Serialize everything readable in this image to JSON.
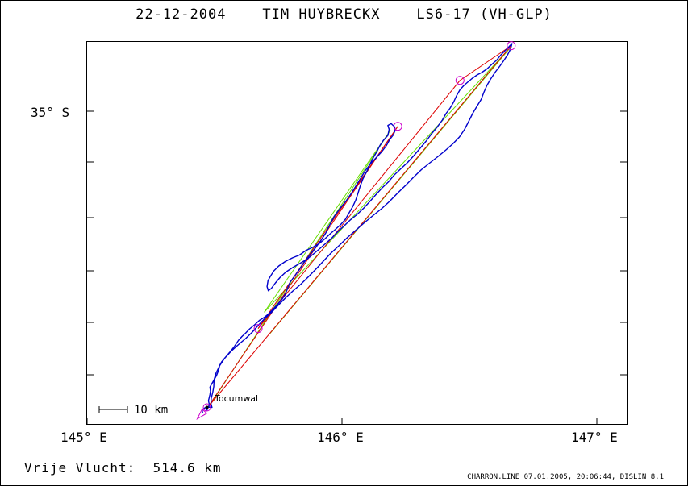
{
  "title": "22-12-2004    TIM HUYBRECKX    LS6-17 (VH-GLP)",
  "axes": {
    "lat_label": "35° S",
    "lon_labels": [
      "145° E",
      "146° E",
      "147° E"
    ]
  },
  "scale_bar_label": "10 km",
  "town": "Tocumwal",
  "distance_text": "Vrije Vlucht:  514.6 km",
  "footer": "CHARRON.LINE 07.01.2005, 20:06:44, DISLIN 8.1",
  "colors": {
    "track": "#0000cc",
    "turnpoint": "#cc00cc",
    "task_line": "#dd0000",
    "alt_line": "#66dd00",
    "frame": "#000000"
  },
  "route": {
    "track": [
      [
        145.454,
        -35.997
      ],
      [
        145.451,
        -35.991
      ],
      [
        145.456,
        -35.985
      ],
      [
        145.463,
        -35.981
      ],
      [
        145.473,
        -35.981
      ],
      [
        145.478,
        -35.976
      ],
      [
        145.479,
        -35.968
      ],
      [
        145.476,
        -35.958
      ],
      [
        145.479,
        -35.948
      ],
      [
        145.482,
        -35.937
      ],
      [
        145.484,
        -35.926
      ],
      [
        145.482,
        -35.913
      ],
      [
        145.489,
        -35.902
      ],
      [
        145.498,
        -35.889
      ],
      [
        145.508,
        -35.874
      ],
      [
        145.516,
        -35.857
      ],
      [
        145.52,
        -35.841
      ],
      [
        145.528,
        -35.829
      ],
      [
        145.541,
        -35.816
      ],
      [
        145.559,
        -35.798
      ],
      [
        145.578,
        -35.778
      ],
      [
        145.594,
        -35.758
      ],
      [
        145.608,
        -35.745
      ],
      [
        145.622,
        -35.734
      ],
      [
        145.638,
        -35.72
      ],
      [
        145.658,
        -35.706
      ],
      [
        145.676,
        -35.692
      ],
      [
        145.695,
        -35.682
      ],
      [
        145.714,
        -35.669
      ],
      [
        145.73,
        -35.655
      ],
      [
        145.747,
        -35.639
      ],
      [
        145.765,
        -35.622
      ],
      [
        145.779,
        -35.603
      ],
      [
        145.788,
        -35.582
      ],
      [
        145.797,
        -35.565
      ],
      [
        145.814,
        -35.546
      ],
      [
        145.832,
        -35.525
      ],
      [
        145.851,
        -35.501
      ],
      [
        145.873,
        -35.476
      ],
      [
        145.897,
        -35.451
      ],
      [
        145.918,
        -35.427
      ],
      [
        145.937,
        -35.402
      ],
      [
        145.951,
        -35.377
      ],
      [
        145.969,
        -35.349
      ],
      [
        145.992,
        -35.322
      ],
      [
        146.016,
        -35.297
      ],
      [
        146.038,
        -35.27
      ],
      [
        146.057,
        -35.244
      ],
      [
        146.074,
        -35.221
      ],
      [
        146.09,
        -35.198
      ],
      [
        146.111,
        -35.175
      ],
      [
        146.134,
        -35.154
      ],
      [
        146.156,
        -35.134
      ],
      [
        146.174,
        -35.114
      ],
      [
        146.187,
        -35.094
      ],
      [
        146.201,
        -35.079
      ],
      [
        146.208,
        -35.065
      ],
      [
        146.207,
        -35.052
      ],
      [
        146.193,
        -35.041
      ],
      [
        146.18,
        -35.047
      ],
      [
        146.185,
        -35.06
      ],
      [
        146.18,
        -35.08
      ],
      [
        146.162,
        -35.097
      ],
      [
        146.149,
        -35.113
      ],
      [
        146.138,
        -35.132
      ],
      [
        146.124,
        -35.152
      ],
      [
        146.11,
        -35.175
      ],
      [
        146.098,
        -35.198
      ],
      [
        146.082,
        -35.224
      ],
      [
        146.071,
        -35.249
      ],
      [
        146.063,
        -35.271
      ],
      [
        146.054,
        -35.294
      ],
      [
        146.042,
        -35.316
      ],
      [
        146.028,
        -35.336
      ],
      [
        146.014,
        -35.357
      ],
      [
        145.995,
        -35.375
      ],
      [
        145.974,
        -35.391
      ],
      [
        145.953,
        -35.406
      ],
      [
        145.932,
        -35.423
      ],
      [
        145.912,
        -35.437
      ],
      [
        145.888,
        -35.449
      ],
      [
        145.858,
        -35.461
      ],
      [
        145.833,
        -35.476
      ],
      [
        145.806,
        -35.485
      ],
      [
        145.778,
        -35.497
      ],
      [
        145.752,
        -35.512
      ],
      [
        145.733,
        -35.528
      ],
      [
        145.72,
        -35.545
      ],
      [
        145.71,
        -35.56
      ],
      [
        145.706,
        -35.58
      ],
      [
        145.711,
        -35.594
      ],
      [
        145.723,
        -35.586
      ],
      [
        145.739,
        -35.568
      ],
      [
        145.757,
        -35.55
      ],
      [
        145.78,
        -35.532
      ],
      [
        145.807,
        -35.517
      ],
      [
        145.836,
        -35.503
      ],
      [
        145.864,
        -35.489
      ],
      [
        145.89,
        -35.471
      ],
      [
        145.915,
        -35.453
      ],
      [
        145.938,
        -35.436
      ],
      [
        145.962,
        -35.418
      ],
      [
        145.983,
        -35.399
      ],
      [
        146.006,
        -35.381
      ],
      [
        146.031,
        -35.361
      ],
      [
        146.06,
        -35.341
      ],
      [
        146.086,
        -35.32
      ],
      [
        146.11,
        -35.298
      ],
      [
        146.133,
        -35.276
      ],
      [
        146.157,
        -35.254
      ],
      [
        146.182,
        -35.234
      ],
      [
        146.205,
        -35.211
      ],
      [
        146.23,
        -35.191
      ],
      [
        146.258,
        -35.169
      ],
      [
        146.283,
        -35.146
      ],
      [
        146.307,
        -35.122
      ],
      [
        146.33,
        -35.099
      ],
      [
        146.352,
        -35.074
      ],
      [
        146.374,
        -35.052
      ],
      [
        146.394,
        -35.029
      ],
      [
        146.408,
        -35.008
      ],
      [
        146.424,
        -34.99
      ],
      [
        146.438,
        -34.97
      ],
      [
        146.45,
        -34.948
      ],
      [
        146.463,
        -34.929
      ],
      [
        146.478,
        -34.915
      ],
      [
        146.493,
        -34.904
      ],
      [
        146.51,
        -34.892
      ],
      [
        146.53,
        -34.88
      ],
      [
        146.548,
        -34.872
      ],
      [
        146.569,
        -34.86
      ],
      [
        146.589,
        -34.844
      ],
      [
        146.607,
        -34.831
      ],
      [
        146.624,
        -34.813
      ],
      [
        146.648,
        -34.793
      ],
      [
        146.667,
        -34.776
      ],
      [
        146.662,
        -34.793
      ],
      [
        146.65,
        -34.813
      ],
      [
        146.636,
        -34.831
      ],
      [
        146.62,
        -34.85
      ],
      [
        146.601,
        -34.871
      ],
      [
        146.583,
        -34.894
      ],
      [
        146.569,
        -34.914
      ],
      [
        146.557,
        -34.937
      ],
      [
        146.546,
        -34.961
      ],
      [
        146.53,
        -34.983
      ],
      [
        146.513,
        -35.007
      ],
      [
        146.497,
        -35.034
      ],
      [
        146.481,
        -35.06
      ],
      [
        146.461,
        -35.085
      ],
      [
        146.436,
        -35.107
      ],
      [
        146.408,
        -35.128
      ],
      [
        146.378,
        -35.149
      ],
      [
        146.346,
        -35.17
      ],
      [
        146.312,
        -35.193
      ],
      [
        146.28,
        -35.219
      ],
      [
        146.25,
        -35.245
      ],
      [
        146.218,
        -35.271
      ],
      [
        146.187,
        -35.298
      ],
      [
        146.156,
        -35.322
      ],
      [
        146.122,
        -35.345
      ],
      [
        146.089,
        -35.368
      ],
      [
        146.055,
        -35.393
      ],
      [
        146.021,
        -35.418
      ],
      [
        145.988,
        -35.445
      ],
      [
        145.956,
        -35.47
      ],
      [
        145.926,
        -35.497
      ],
      [
        145.897,
        -35.523
      ],
      [
        145.868,
        -35.548
      ],
      [
        145.839,
        -35.572
      ],
      [
        145.807,
        -35.595
      ],
      [
        145.778,
        -35.618
      ],
      [
        145.75,
        -35.642
      ],
      [
        145.723,
        -35.666
      ],
      [
        145.697,
        -35.686
      ],
      [
        145.672,
        -35.708
      ],
      [
        145.648,
        -35.731
      ],
      [
        145.622,
        -35.752
      ],
      [
        145.594,
        -35.772
      ],
      [
        145.565,
        -35.794
      ],
      [
        145.539,
        -35.818
      ],
      [
        145.52,
        -35.842
      ],
      [
        145.506,
        -35.866
      ],
      [
        145.498,
        -35.889
      ],
      [
        145.497,
        -35.911
      ],
      [
        145.493,
        -35.93
      ],
      [
        145.487,
        -35.95
      ],
      [
        145.486,
        -35.968
      ],
      [
        145.49,
        -35.98
      ],
      [
        145.478,
        -35.979
      ],
      [
        145.468,
        -35.984
      ],
      [
        145.472,
        -35.99
      ],
      [
        145.473,
        -35.99
      ]
    ],
    "task_lines": [
      [
        [
          145.473,
          -35.98
        ],
        [
          146.219,
          -35.05
        ]
      ],
      [
        [
          146.219,
          -35.05
        ],
        [
          145.671,
          -35.719
        ]
      ],
      [
        [
          145.671,
          -35.719
        ],
        [
          146.463,
          -34.898
        ]
      ],
      [
        [
          146.463,
          -34.898
        ],
        [
          146.664,
          -34.783
        ]
      ],
      [
        [
          146.664,
          -34.783
        ],
        [
          145.473,
          -35.98
        ]
      ]
    ],
    "alt_lines": [
      [
        [
          145.48,
          -35.975
        ],
        [
          146.19,
          -35.063
        ]
      ],
      [
        [
          146.19,
          -35.063
        ],
        [
          145.695,
          -35.665
        ]
      ],
      [
        [
          145.695,
          -35.665
        ],
        [
          146.66,
          -34.79
        ]
      ],
      [
        [
          146.66,
          -34.79
        ],
        [
          145.718,
          -35.735
        ]
      ]
    ],
    "turnpoints": [
      [
        146.219,
        -35.05
      ],
      [
        145.671,
        -35.719
      ],
      [
        146.463,
        -34.898
      ],
      [
        146.664,
        -34.783
      ]
    ],
    "start": [
      145.47,
      -35.98
    ],
    "finish": [
      145.432,
      -36.018
    ]
  }
}
